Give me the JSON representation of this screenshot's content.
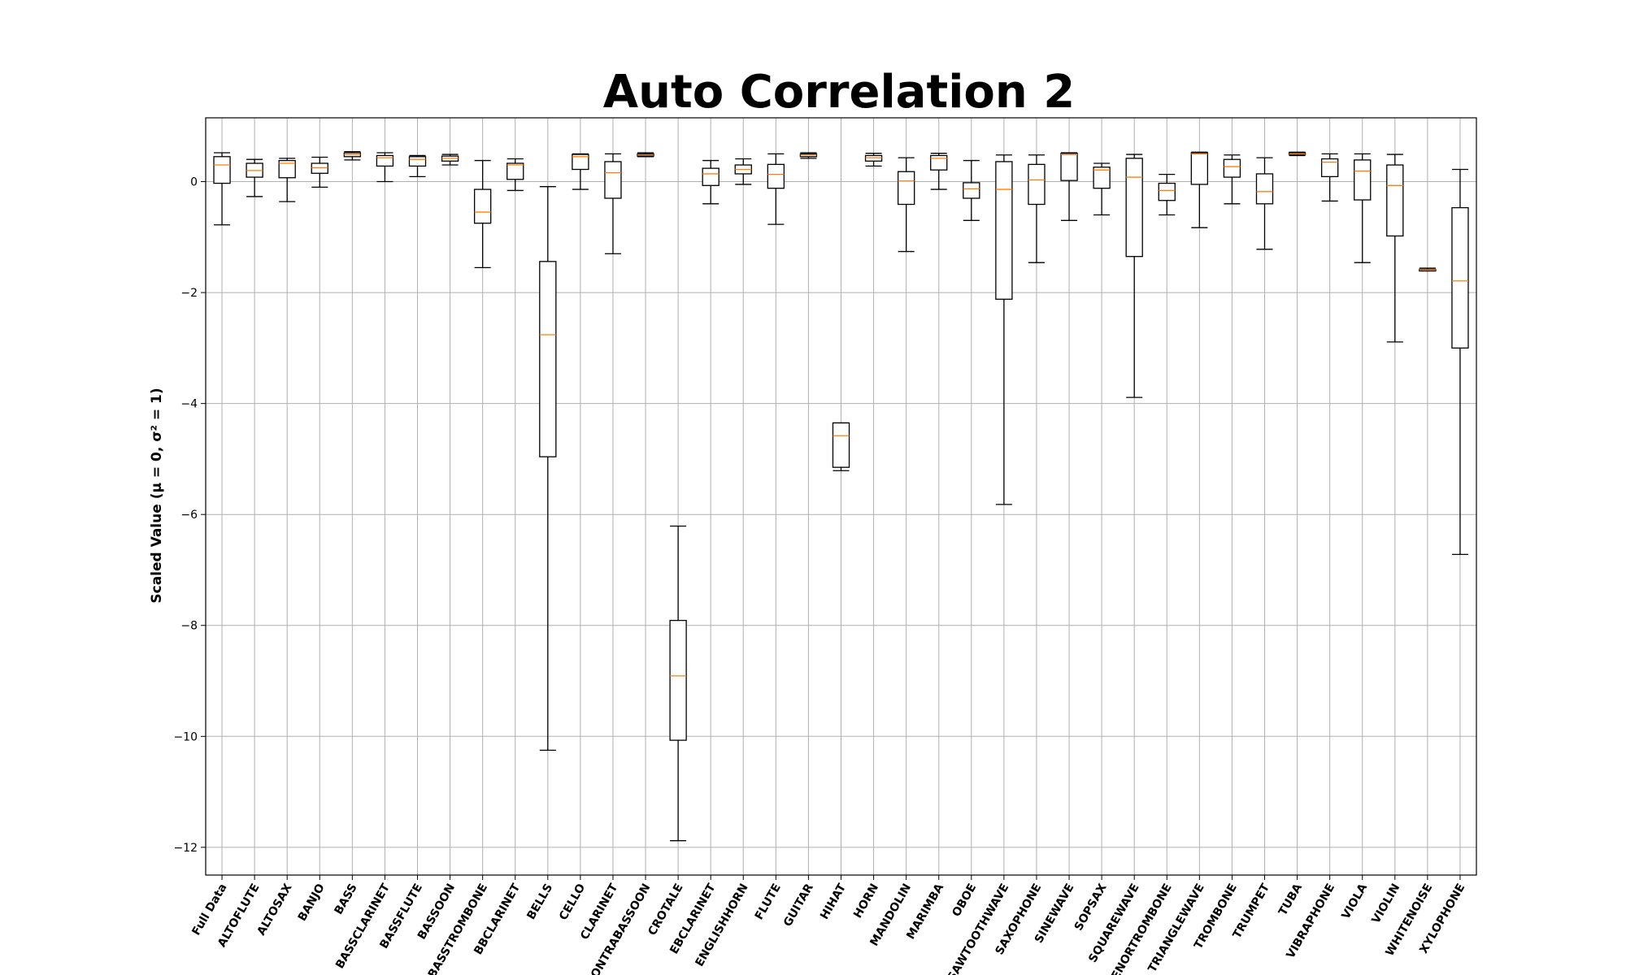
{
  "chart_data": {
    "type": "boxplot",
    "title": "Auto Correlation 2",
    "ylabel": "Scaled Value (μ = 0, σ² = 1)",
    "ylim": [
      -12.5,
      1.15
    ],
    "yticks": [
      0,
      -2,
      -4,
      -6,
      -8,
      -10,
      -12
    ],
    "grid": true,
    "colors": {
      "box": "#000000",
      "median": "#ff7f0e",
      "grid": "#b0b0b0"
    },
    "categories": [
      "Full Data",
      "ALTOFLUTE",
      "ALTOSAX",
      "BANJO",
      "BASS",
      "BASSCLARINET",
      "BASSFLUTE",
      "BASSOON",
      "BASSTROMBONE",
      "BBCLARINET",
      "BELLS",
      "CELLO",
      "CLARINET",
      "CONTRABASSOON",
      "CROTALE",
      "EBCLARINET",
      "ENGLISHHORN",
      "FLUTE",
      "GUITAR",
      "HIHAT",
      "HORN",
      "MANDOLIN",
      "MARIMBA",
      "OBOE",
      "SAWTOOTHWAVE",
      "SAXOPHONE",
      "SINEWAVE",
      "SOPSAX",
      "SQUAREWAVE",
      "TENORTROMBONE",
      "TRIANGLEWAVE",
      "TROMBONE",
      "TRUMPET",
      "TUBA",
      "VIBRAPHONE",
      "VIOLA",
      "VIOLIN",
      "WHITENOISE",
      "XYLOPHONE"
    ],
    "boxes": [
      {
        "whislo": -0.78,
        "q1": -0.03,
        "med": 0.3,
        "q3": 0.45,
        "whishi": 0.52
      },
      {
        "whislo": -0.27,
        "q1": 0.08,
        "med": 0.2,
        "q3": 0.33,
        "whishi": 0.4
      },
      {
        "whislo": -0.36,
        "q1": 0.07,
        "med": 0.33,
        "q3": 0.38,
        "whishi": 0.42
      },
      {
        "whislo": -0.1,
        "q1": 0.15,
        "med": 0.25,
        "q3": 0.33,
        "whishi": 0.44
      },
      {
        "whislo": 0.39,
        "q1": 0.45,
        "med": 0.49,
        "q3": 0.52,
        "whishi": 0.54
      },
      {
        "whislo": 0.0,
        "q1": 0.28,
        "med": 0.43,
        "q3": 0.47,
        "whishi": 0.52
      },
      {
        "whislo": 0.09,
        "q1": 0.28,
        "med": 0.4,
        "q3": 0.45,
        "whishi": 0.47
      },
      {
        "whislo": 0.3,
        "q1": 0.37,
        "med": 0.42,
        "q3": 0.46,
        "whishi": 0.49
      },
      {
        "whislo": -1.55,
        "q1": -0.75,
        "med": -0.55,
        "q3": -0.14,
        "whishi": 0.38
      },
      {
        "whislo": -0.16,
        "q1": 0.04,
        "med": 0.3,
        "q3": 0.33,
        "whishi": 0.41
      },
      {
        "whislo": -10.25,
        "q1": -4.96,
        "med": -2.76,
        "q3": -1.44,
        "whishi": -0.09
      },
      {
        "whislo": -0.14,
        "q1": 0.22,
        "med": 0.45,
        "q3": 0.49,
        "whishi": 0.5
      },
      {
        "whislo": -1.3,
        "q1": -0.3,
        "med": 0.16,
        "q3": 0.36,
        "whishi": 0.5
      },
      {
        "whislo": 0.45,
        "q1": 0.46,
        "med": 0.48,
        "q3": 0.5,
        "whishi": 0.52
      },
      {
        "whislo": -11.88,
        "q1": -10.07,
        "med": -8.91,
        "q3": -7.91,
        "whishi": -6.21
      },
      {
        "whislo": -0.4,
        "q1": -0.07,
        "med": 0.14,
        "q3": 0.24,
        "whishi": 0.38
      },
      {
        "whislo": -0.05,
        "q1": 0.14,
        "med": 0.22,
        "q3": 0.3,
        "whishi": 0.41
      },
      {
        "whislo": -0.77,
        "q1": -0.12,
        "med": 0.13,
        "q3": 0.31,
        "whishi": 0.5
      },
      {
        "whislo": 0.42,
        "q1": 0.45,
        "med": 0.48,
        "q3": 0.5,
        "whishi": 0.52
      },
      {
        "whislo": -5.21,
        "q1": -5.15,
        "med": -4.58,
        "q3": -4.35,
        "whishi": -4.35
      },
      {
        "whislo": 0.28,
        "q1": 0.37,
        "med": 0.43,
        "q3": 0.47,
        "whishi": 0.51
      },
      {
        "whislo": -1.26,
        "q1": -0.41,
        "med": 0.01,
        "q3": 0.18,
        "whishi": 0.43
      },
      {
        "whislo": -0.14,
        "q1": 0.21,
        "med": 0.42,
        "q3": 0.47,
        "whishi": 0.51
      },
      {
        "whislo": -0.7,
        "q1": -0.3,
        "med": -0.13,
        "q3": -0.02,
        "whishi": 0.38
      },
      {
        "whislo": -5.82,
        "q1": -2.12,
        "med": -0.14,
        "q3": 0.36,
        "whishi": 0.48
      },
      {
        "whislo": -1.46,
        "q1": -0.41,
        "med": 0.03,
        "q3": 0.31,
        "whishi": 0.48
      },
      {
        "whislo": -0.7,
        "q1": 0.02,
        "med": 0.49,
        "q3": 0.51,
        "whishi": 0.52
      },
      {
        "whislo": -0.6,
        "q1": -0.12,
        "med": 0.21,
        "q3": 0.26,
        "whishi": 0.33
      },
      {
        "whislo": -3.89,
        "q1": -1.35,
        "med": 0.08,
        "q3": 0.42,
        "whishi": 0.49
      },
      {
        "whislo": -0.6,
        "q1": -0.34,
        "med": -0.16,
        "q3": -0.03,
        "whishi": 0.13
      },
      {
        "whislo": -0.83,
        "q1": -0.05,
        "med": 0.5,
        "q3": 0.52,
        "whishi": 0.53
      },
      {
        "whislo": -0.4,
        "q1": 0.08,
        "med": 0.27,
        "q3": 0.4,
        "whishi": 0.48
      },
      {
        "whislo": -1.22,
        "q1": -0.4,
        "med": -0.18,
        "q3": 0.14,
        "whishi": 0.43
      },
      {
        "whislo": 0.47,
        "q1": 0.49,
        "med": 0.5,
        "q3": 0.52,
        "whishi": 0.53
      },
      {
        "whislo": -0.35,
        "q1": 0.09,
        "med": 0.35,
        "q3": 0.41,
        "whishi": 0.5
      },
      {
        "whislo": -1.46,
        "q1": -0.33,
        "med": 0.19,
        "q3": 0.39,
        "whishi": 0.5
      },
      {
        "whislo": -2.89,
        "q1": -0.98,
        "med": -0.07,
        "q3": 0.3,
        "whishi": 0.49
      },
      {
        "whislo": -1.61,
        "q1": -1.61,
        "med": -1.59,
        "q3": -1.58,
        "whishi": -1.56
      },
      {
        "whislo": -6.72,
        "q1": -3.0,
        "med": -1.79,
        "q3": -0.47,
        "whishi": 0.22
      }
    ]
  }
}
